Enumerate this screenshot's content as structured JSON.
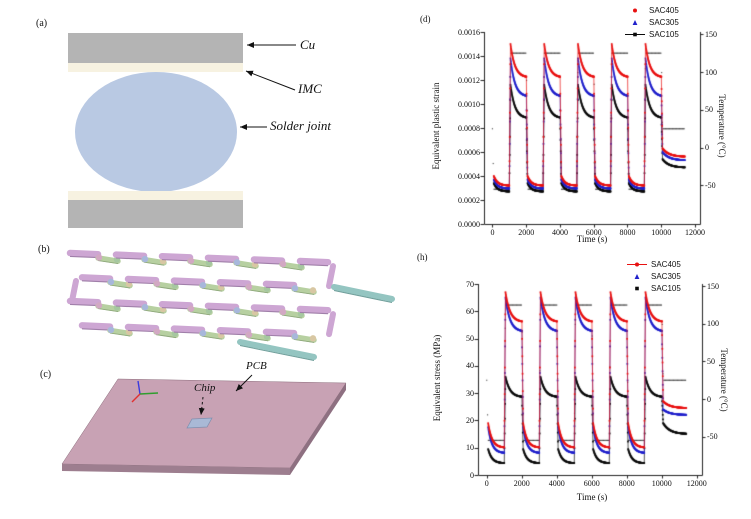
{
  "panels": {
    "a": {
      "label": "(a)",
      "cu": "Cu",
      "imc": "IMC",
      "solder": "Solder joint",
      "colors": {
        "copper": "#b4b4b4",
        "imc": "#f7f2e1",
        "solder": "#b9c9e3"
      }
    },
    "b": {
      "label": "(b)",
      "colors": {
        "top_trace": "#cda6d3",
        "top_trace_shade": "#a07fa9",
        "bottom_trace": "#b7d0a1",
        "bottom_trace_shade": "#8fa97c",
        "tail": "#94c5c1",
        "tail_shade": "#6f9e9a",
        "balls": [
          "#d2a8c3",
          "#a6c7a0",
          "#a7b7db",
          "#d8c7a3"
        ]
      }
    },
    "c": {
      "label": "(c)",
      "chip": "Chip",
      "pcb": "PCB",
      "colors": {
        "board_top": "#c8a2b4",
        "board_front": "#9d7e8f",
        "board_side": "#8e7081",
        "chip_top": "#a9b9d6",
        "chip_edge": "#7f8fae",
        "axis_x": "#e03030",
        "axis_y": "#2f9e2f",
        "axis_z": "#3a3ae0"
      }
    }
  },
  "chart_data": [
    {
      "id": "plastic-strain-vs-time",
      "type": "scatter",
      "panel_label": "(d)",
      "xlabel": "Time (s)",
      "x_ticks": [
        0,
        2000,
        4000,
        6000,
        8000,
        10000,
        12000
      ],
      "xlim": [
        -500,
        12300
      ],
      "ylabel_left": "Equivalent plastic strain",
      "y_left_ticks": [
        "0.0000",
        "0.0002",
        "0.0004",
        "0.0006",
        "0.0008",
        "0.0010",
        "0.0012",
        "0.0014",
        "0.0016"
      ],
      "y_left_tick_values": [
        0,
        0.0002,
        0.0004,
        0.0006,
        0.0008,
        0.001,
        0.0012,
        0.0014,
        0.0016
      ],
      "ylim_left": [
        0,
        0.0016
      ],
      "ylabel_right": "Temperature (°C)",
      "y_right_ticks": [
        150,
        100,
        50,
        0,
        -50
      ],
      "ylim_right": [
        -101,
        153
      ],
      "grid": false,
      "legend_position": "top-right",
      "thermal_cycle": {
        "hot_c": 125,
        "cold_c": -55,
        "end_c": 25,
        "first_rise_s": 1000,
        "period_s": 2000,
        "hot_dwell_s": 940,
        "ramp_s": 70,
        "cycles": 5,
        "final_start_s": 10080,
        "final_end_s": 11400
      },
      "temperature_series_color": "#3f3f3f",
      "series": [
        {
          "name": "SAC405",
          "color": "#e81111",
          "marker": "circle",
          "legend_line": false,
          "hot_peak": 0.0015,
          "hot_plateau_end": 0.00122,
          "cold_peak": 0.0004,
          "cold_plateau_end": 0.00032,
          "final_peak": 0.00063,
          "final_end": 0.00056
        },
        {
          "name": "SAC305",
          "color": "#2121cb",
          "marker": "triangle",
          "legend_line": false,
          "hot_peak": 0.00138,
          "hot_plateau_end": 0.00106,
          "cold_peak": 0.00037,
          "cold_plateau_end": 0.000295,
          "final_peak": 0.0006,
          "final_end": 0.00053
        },
        {
          "name": "SAC105",
          "color": "#0b0b0b",
          "marker": "square",
          "legend_line": true,
          "hot_peak": 0.00116,
          "hot_plateau_end": 0.00088,
          "cold_peak": 0.00034,
          "cold_plateau_end": 0.00027,
          "final_peak": 0.00054,
          "final_end": 0.00047
        }
      ]
    },
    {
      "id": "stress-vs-time",
      "type": "scatter",
      "panel_label": "(h)",
      "xlabel": "Time (s)",
      "x_ticks": [
        0,
        2000,
        4000,
        6000,
        8000,
        10000,
        12000
      ],
      "xlim": [
        -500,
        12300
      ],
      "ylabel_left": "Equivalent stress (MPa)",
      "y_left_ticks": [
        "0",
        "10",
        "20",
        "30",
        "40",
        "50",
        "60",
        "70"
      ],
      "y_left_tick_values": [
        0,
        10,
        20,
        30,
        40,
        50,
        60,
        70
      ],
      "ylim_left": [
        0,
        70
      ],
      "ylabel_right": "Temperature (°C)",
      "y_right_ticks": [
        150,
        100,
        50,
        0,
        -50
      ],
      "ylim_right": [
        -101,
        153
      ],
      "grid": false,
      "legend_position": "top-right",
      "thermal_cycle": {
        "hot_c": 125,
        "cold_c": -55,
        "end_c": 25,
        "first_rise_s": 1000,
        "period_s": 2000,
        "hot_dwell_s": 940,
        "ramp_s": 70,
        "cycles": 5,
        "final_start_s": 10080,
        "final_end_s": 11400
      },
      "temperature_series_color": "#3f3f3f",
      "series": [
        {
          "name": "SAC405",
          "color": "#e81111",
          "marker": "circle",
          "legend_line": true,
          "hot_peak": 67,
          "hot_plateau_end": 56,
          "cold_peak": 19,
          "cold_plateau_end": 10,
          "final_peak": 27,
          "final_end": 24.5
        },
        {
          "name": "SAC305",
          "color": "#2121cb",
          "marker": "triangle",
          "legend_line": false,
          "hot_peak": 65,
          "hot_plateau_end": 52.5,
          "cold_peak": 17.5,
          "cold_plateau_end": 8,
          "final_peak": 24,
          "final_end": 22
        },
        {
          "name": "SAC105",
          "color": "#0b0b0b",
          "marker": "square",
          "legend_line": false,
          "hot_peak": 36,
          "hot_plateau_end": 28.5,
          "cold_peak": 9.5,
          "cold_plateau_end": 4.3,
          "final_peak": 19,
          "final_end": 15
        }
      ]
    }
  ]
}
